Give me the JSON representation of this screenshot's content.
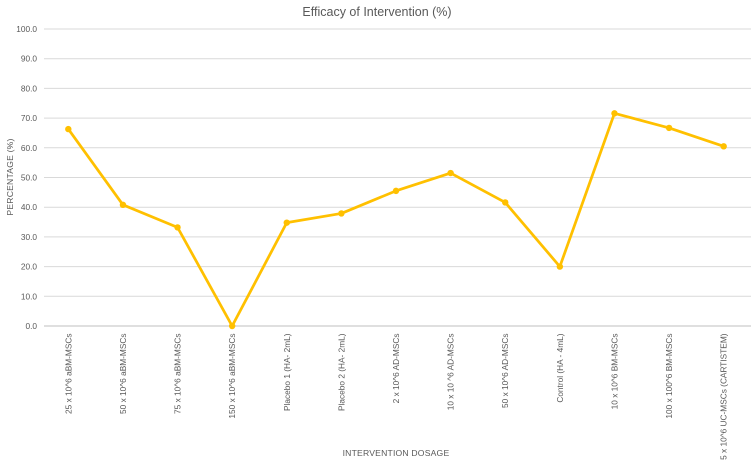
{
  "chart_data": {
    "type": "line",
    "title": "Efficacy of Intervention (%)",
    "xlabel": "INTERVENTION DOSAGE",
    "ylabel": "PERCENTAGE (%)",
    "ylim": [
      0,
      100
    ],
    "ytick_step": 10,
    "ytick_decimals": 1,
    "grid": true,
    "legend": false,
    "marker": "circle",
    "categories": [
      "25 x 10^6 aBM-MSCs",
      "50 x 10^6 aBM-MSCs",
      "75 x 10^6 aBM-MSCs",
      "150 x 10^6 aBM-MSCs",
      "Placebo 1 (HA- 2mL)",
      "Placebo 2 (HA- 2mL)",
      "2 x 10^6 AD-MSCs",
      "10 x 10 ^6 AD-MSCs",
      "50 x 10^6 AD-MSCs",
      "Control (HA - 4mL)",
      "10 x 10^6 BM-MSCs",
      "100 x 100^6 BM-MSCs",
      "5 x 10^6 UC-MSCs (CARTISTEM)"
    ],
    "values": [
      66.3,
      40.8,
      33.2,
      0.0,
      34.8,
      37.9,
      45.5,
      51.5,
      41.6,
      20.0,
      71.6,
      66.7,
      60.5
    ]
  },
  "colors": {
    "line": "#FFC000",
    "marker": "#FFC000",
    "gridline": "#D9D9D9",
    "axis_line": "#BFBFBF",
    "text": "#595959",
    "background": "#FFFFFF"
  }
}
